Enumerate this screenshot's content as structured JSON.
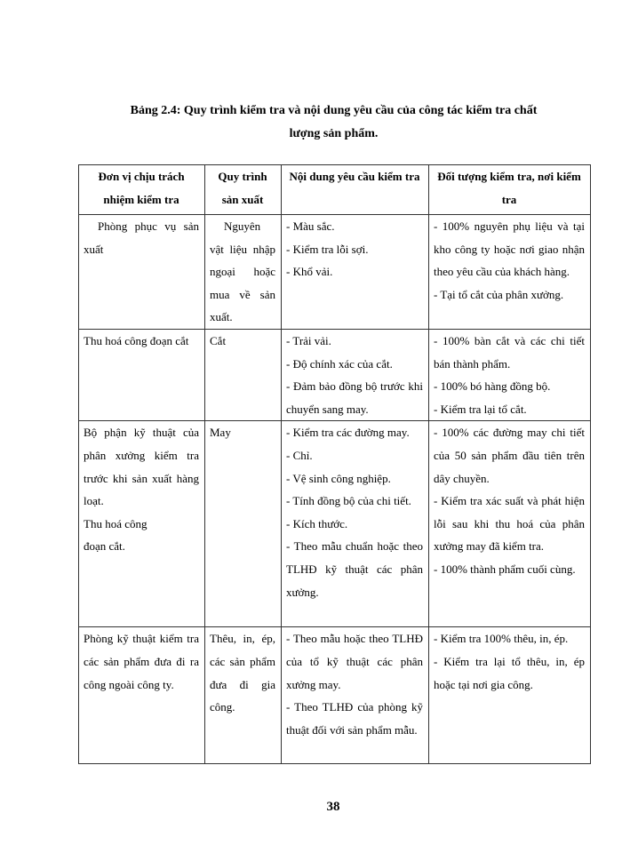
{
  "title_line1": "Bảng 2.4: Quy trình kiểm tra và nội dung yêu cầu của công tác kiểm tra chất",
  "title_line2": "lượng sản phẩm.",
  "table": {
    "headers": [
      "Đơn vị chịu trách nhiệm kiểm tra",
      "Quy trình sản xuất",
      "Nội dung yêu cầu kiểm tra",
      "Đối tượng kiểm tra, nơi kiểm tra"
    ],
    "rows": [
      {
        "unit": [
          "Phòng phục vụ sản xuất"
        ],
        "process": [
          "Nguyên vật liệu nhập ngoại hoặc mua về sản xuất."
        ],
        "content": [
          "- Màu sắc.",
          "- Kiểm tra lỗi sợi.",
          "- Khổ vải."
        ],
        "target": [
          "- 100% nguyên phụ liệu và tại kho công ty hoặc nơi giao nhận theo yêu cầu của khách hàng.",
          "- Tại tổ cắt của phân xưởng."
        ]
      },
      {
        "unit": [
          "Thu hoá công đoạn cắt"
        ],
        "process": [
          "Cắt"
        ],
        "content": [
          "- Trải vải.",
          "- Độ chính xác của cắt.",
          "- Đảm bảo đồng bộ trước khi chuyển sang may."
        ],
        "target": [
          "- 100% bàn cắt và các chi tiết bán thành phẩm.",
          "- 100% bó hàng đồng bộ.",
          "- Kiểm tra lại tổ cắt."
        ]
      },
      {
        "unit": [
          "Bộ phận kỹ thuật của phân xưởng kiểm tra trước khi sản xuất hàng loạt.",
          "Thu hoá công",
          " đoạn cắt."
        ],
        "process": [
          "May"
        ],
        "content": [
          "- Kiểm tra các đường may.",
          "- Chỉ.",
          "- Vệ sinh công nghiệp.",
          "- Tính đồng bộ của chi tiết.",
          "- Kích thước.",
          "- Theo mẫu chuẩn hoặc theo TLHĐ kỹ thuật các phân xưởng."
        ],
        "target": [
          "- 100% các đường may chi tiết của 50 sản phẩm đầu tiên trên dây chuyền.",
          "- Kiểm tra xác suất và phát hiện lỗi sau khi thu hoá của phân xưởng may đã kiểm tra.",
          "- 100% thành phẩm cuối cùng."
        ]
      },
      {
        "unit": [
          "Phòng kỹ thuật kiểm tra các sản phẩm đưa đi ra công ngoài công ty."
        ],
        "process": [
          "Thêu, in, ép, các sản phẩm đưa đi gia công."
        ],
        "content": [
          "- Theo mẫu hoặc theo TLHĐ của tổ kỹ thuật các phân xưởng may.",
          "- Theo TLHĐ của phòng kỹ thuật đối với sản phẩm mẫu."
        ],
        "target": [
          "- Kiểm tra 100% thêu, in, ép.",
          "- Kiểm tra lại tổ thêu, in, ép hoặc tại nơi gia công."
        ]
      }
    ]
  },
  "page_number": "38"
}
